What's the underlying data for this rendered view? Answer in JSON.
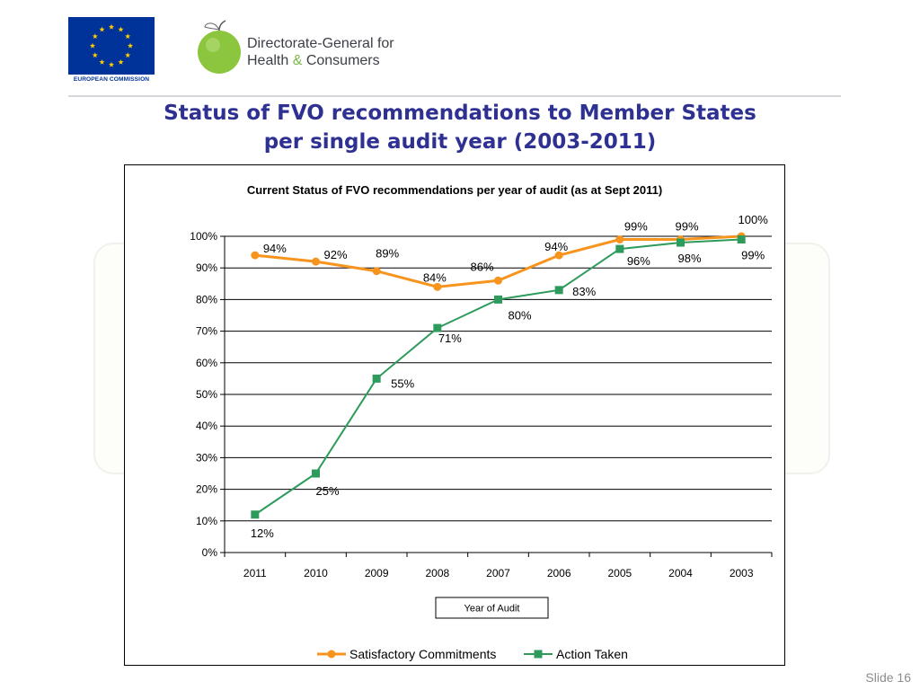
{
  "header": {
    "eu_caption": "EUROPEAN COMMISSION",
    "dg_line1": "Directorate-General for",
    "dg_line2_prefix": "Health",
    "dg_line2_amp": "&",
    "dg_line2_suffix": "Consumers"
  },
  "slide": {
    "title_line1": "Status of FVO recommendations to Member States",
    "title_line2": "per single audit year (2003-2011)",
    "number": "Slide 16"
  },
  "colors": {
    "title": "#2e3192",
    "satisfactory": "#f7941d",
    "action": "#2e9b5c",
    "eu_blue": "#003399",
    "eu_star": "#ffcc00"
  },
  "chart_data": {
    "type": "line",
    "title": "Current Status of FVO recommendations per year of audit (as at Sept 2011)",
    "xlabel": "Year of Audit",
    "ylabel": "",
    "categories": [
      "2011",
      "2010",
      "2009",
      "2008",
      "2007",
      "2006",
      "2005",
      "2004",
      "2003"
    ],
    "ylim": [
      0,
      100
    ],
    "yticks": [
      "0%",
      "10%",
      "20%",
      "30%",
      "40%",
      "50%",
      "60%",
      "70%",
      "80%",
      "90%",
      "100%"
    ],
    "grid": true,
    "legend": "bottom",
    "series": [
      {
        "name": "Satisfactory Commitments",
        "marker": "circle",
        "values": [
          94,
          92,
          89,
          84,
          86,
          94,
          99,
          99,
          100
        ],
        "labels": [
          "94%",
          "92%",
          "89%",
          "84%",
          "86%",
          "94%",
          "99%",
          "99%",
          "100%"
        ]
      },
      {
        "name": "Action Taken",
        "marker": "square",
        "values": [
          12,
          25,
          55,
          71,
          80,
          83,
          96,
          98,
          99
        ],
        "labels": [
          "12%",
          "25%",
          "55%",
          "71%",
          "80%",
          "83%",
          "96%",
          "98%",
          "99%"
        ]
      }
    ]
  }
}
